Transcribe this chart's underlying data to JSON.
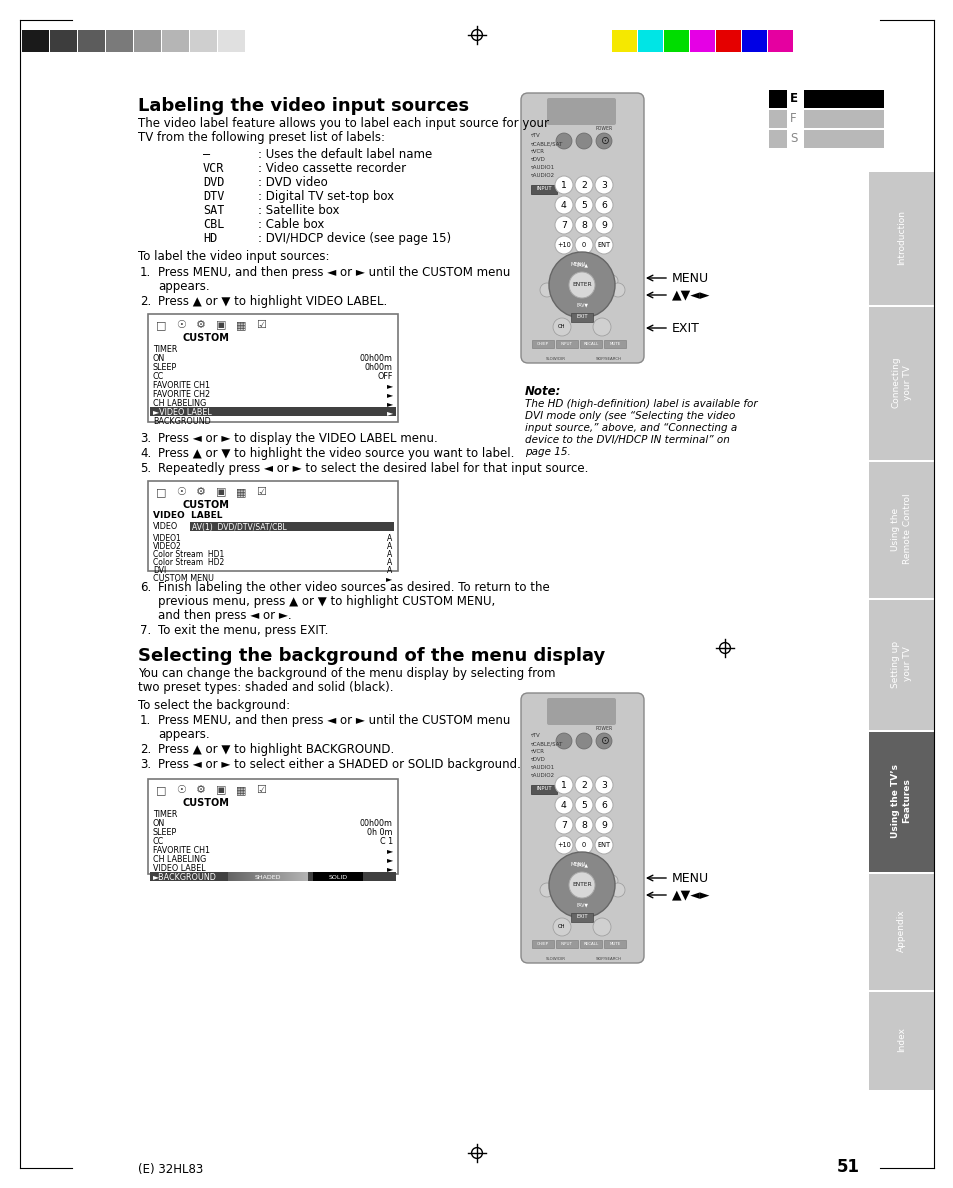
{
  "page_bg": "#ffffff",
  "page_number": "51",
  "bottom_label": "(E) 32HL83",
  "title1": "Labeling the video input sources",
  "title2": "Selecting the background of the menu display",
  "intro1": "The video label feature allows you to label each input source for your\nTV from the following preset list of labels:",
  "label_items": [
    [
      "–",
      ": Uses the default label name"
    ],
    [
      "VCR",
      ": Video cassette recorder"
    ],
    [
      "DVD",
      ": DVD video"
    ],
    [
      "DTV",
      ": Digital TV set-top box"
    ],
    [
      "SAT",
      ": Satellite box"
    ],
    [
      "CBL",
      ": Cable box"
    ],
    [
      "HD",
      ": DVI/HDCP device (see page 15)"
    ]
  ],
  "steps1_label": "To label the video input sources:",
  "steps1": [
    "Press MENU, and then press ◄ or ► until the CUSTOM menu\nappears.",
    "Press ▲ or ▼ to highlight VIDEO LABEL.",
    "Press ◄ or ► to display the VIDEO LABEL menu.",
    "Press ▲ or ▼ to highlight the video source you want to label.",
    "Repeatedly press ◄ or ► to select the desired label for that input source.",
    "Finish labeling the other video sources as desired. To return to the\nprevious menu, press ▲ or ▼ to highlight CUSTOM MENU,\nand then press ◄ or ►.",
    "To exit the menu, press EXIT."
  ],
  "intro2": "You can change the background of the menu display by selecting from\ntwo preset types: shaded and solid (black).",
  "steps2_label": "To select the background:",
  "steps2": [
    "Press MENU, and then press ◄ or ► until the CUSTOM menu\nappears.",
    "Press ▲ or ▼ to highlight BACKGROUND.",
    "Press ◄ or ► to select either a SHADED or SOLID background."
  ],
  "note_title": "Note:",
  "note_text": "The HD (high-definition) label is available for\nDVI mode only (see “Selecting the video\ninput source,” above, and “Connecting a\ndevice to the DVI/HDCP IN terminal” on\npage 15.",
  "sidebar_sections": [
    "Introduction",
    "Connecting\nyour TV",
    "Using the\nRemote Control",
    "Setting up\nyour TV",
    "Using the TV’s\nFeatures",
    "Appendix",
    "Index"
  ],
  "menu_label": "MENU",
  "nav_label": "▲▼◄►",
  "exit_label": "EXIT",
  "grayscale_bar": [
    "#1a1a1a",
    "#3d3d3d",
    "#5c5c5c",
    "#7a7a7a",
    "#999999",
    "#b5b5b5",
    "#cfcfcf",
    "#e0e0e0"
  ],
  "color_bar": [
    "#f5e800",
    "#00e5e5",
    "#00dd00",
    "#e500e5",
    "#e50000",
    "#0000e5",
    "#e500a0",
    "#ffffff"
  ]
}
